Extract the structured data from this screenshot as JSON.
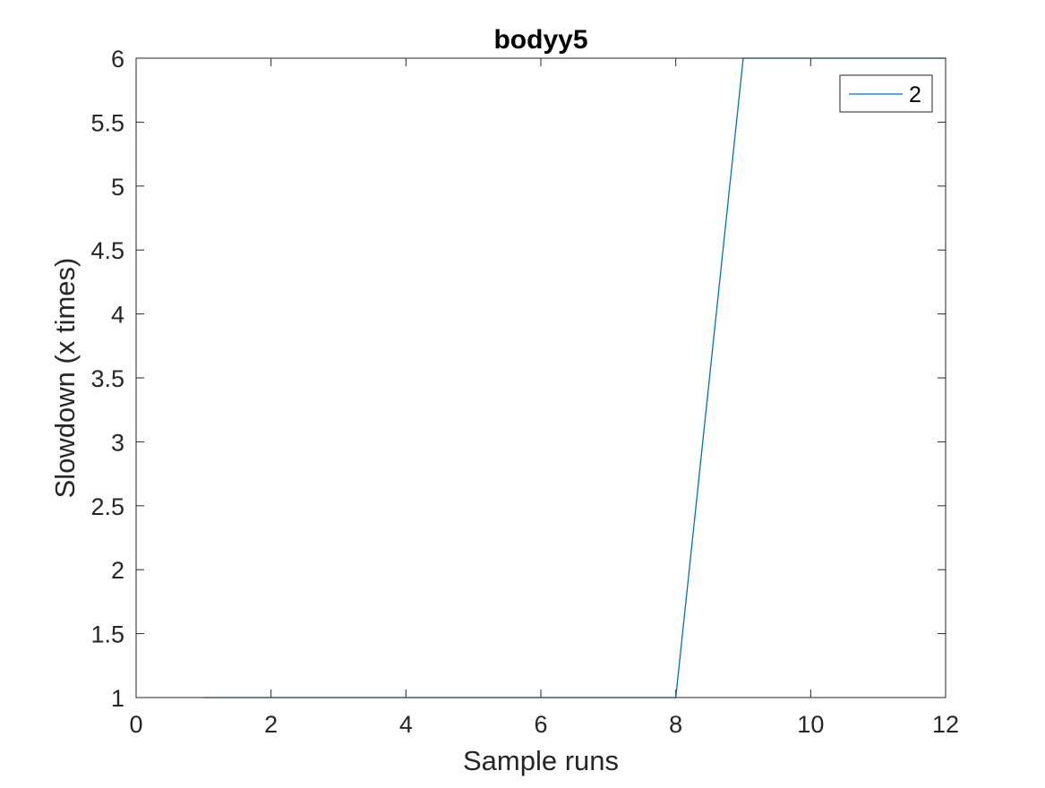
{
  "chart_data": {
    "type": "line",
    "title": "bodyy5",
    "xlabel": "Sample runs",
    "ylabel": "Slowdown (x times)",
    "xlim": [
      0,
      12
    ],
    "ylim": [
      1,
      6
    ],
    "xticks": [
      0,
      2,
      4,
      6,
      8,
      10,
      12
    ],
    "yticks": [
      1,
      1.5,
      2,
      2.5,
      3,
      3.5,
      4,
      4.5,
      5,
      5.5,
      6
    ],
    "grid": false,
    "legend_location": "top-right",
    "series": [
      {
        "name": "2",
        "color": "#0072BD",
        "x": [
          1,
          2,
          3,
          4,
          5,
          6,
          7,
          8,
          9,
          10,
          11,
          12
        ],
        "y": [
          1,
          1,
          1,
          1,
          1,
          1,
          1,
          1,
          6,
          6,
          6,
          6
        ]
      }
    ]
  }
}
